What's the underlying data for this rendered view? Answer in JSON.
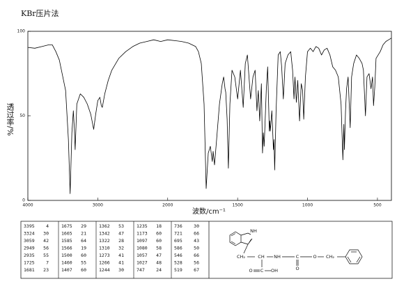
{
  "chart_data": {
    "type": "line",
    "title": "KBr压片法",
    "xlabel": "波数/cm⁻¹",
    "ylabel": "透过率/%",
    "x_scale_break": 2000,
    "x_scale_ratio": 2,
    "color": "#000000",
    "xlim": [
      4000,
      400
    ],
    "xticks": [
      4000,
      3000,
      2000,
      1500,
      1000,
      500
    ],
    "ylim": [
      0,
      100
    ],
    "yticks": [
      0,
      50,
      100
    ],
    "x": [
      4000,
      3900,
      3800,
      3700,
      3650,
      3600,
      3550,
      3500,
      3460,
      3420,
      3395,
      3370,
      3350,
      3335,
      3324,
      3300,
      3250,
      3200,
      3150,
      3100,
      3059,
      3030,
      3000,
      2970,
      2949,
      2935,
      2900,
      2850,
      2800,
      2700,
      2600,
      2500,
      2400,
      2300,
      2200,
      2100,
      2000,
      1900,
      1850,
      1800,
      1780,
      1760,
      1740,
      1725,
      1710,
      1695,
      1681,
      1675,
      1665,
      1650,
      1630,
      1610,
      1600,
      1590,
      1585,
      1575,
      1566,
      1555,
      1540,
      1520,
      1500,
      1480,
      1460,
      1445,
      1430,
      1407,
      1390,
      1375,
      1362,
      1352,
      1342,
      1330,
      1322,
      1316,
      1310,
      1295,
      1285,
      1273,
      1270,
      1266,
      1255,
      1244,
      1240,
      1235,
      1225,
      1210,
      1195,
      1185,
      1173,
      1160,
      1140,
      1120,
      1107,
      1097,
      1090,
      1080,
      1070,
      1057,
      1045,
      1035,
      1027,
      1015,
      1000,
      980,
      960,
      940,
      920,
      900,
      880,
      860,
      840,
      820,
      800,
      780,
      760,
      747,
      740,
      736,
      728,
      721,
      710,
      695,
      685,
      670,
      650,
      630,
      610,
      600,
      586,
      575,
      560,
      546,
      535,
      528,
      519,
      510,
      480,
      460,
      440,
      420,
      400
    ],
    "values": [
      90.5,
      90,
      91,
      92,
      92,
      88,
      83,
      73,
      65,
      36,
      4,
      40,
      53,
      42,
      30,
      57,
      63,
      61,
      57,
      51,
      42,
      51,
      59,
      61,
      56,
      55,
      63,
      71,
      77,
      84,
      88,
      91,
      93,
      94,
      95,
      94,
      95,
      94,
      93,
      91,
      88,
      81,
      57,
      7,
      28,
      32,
      23,
      29,
      21,
      36,
      57,
      69,
      73,
      66,
      64,
      48,
      19,
      57,
      77,
      73,
      60,
      77,
      55,
      81,
      86,
      60,
      73,
      77,
      53,
      65,
      47,
      69,
      28,
      40,
      32,
      65,
      79,
      41,
      47,
      41,
      53,
      30,
      36,
      18,
      53,
      86,
      88,
      79,
      60,
      81,
      86,
      88,
      77,
      60,
      73,
      58,
      71,
      47,
      69,
      65,
      48,
      73,
      88,
      90,
      88,
      91,
      90,
      86,
      89,
      90,
      86,
      79,
      77,
      73,
      57,
      24,
      45,
      30,
      53,
      66,
      73,
      43,
      73,
      81,
      86,
      84,
      81,
      77,
      50,
      73,
      75,
      66,
      73,
      56,
      67,
      84,
      88,
      92,
      94,
      95,
      96
    ]
  },
  "peak_table": {
    "rows": [
      [
        3395,
        4,
        1675,
        29,
        1362,
        53,
        1235,
        18,
        736,
        30
      ],
      [
        3324,
        30,
        1665,
        21,
        1342,
        47,
        1173,
        60,
        721,
        66
      ],
      [
        3059,
        42,
        1585,
        64,
        1322,
        28,
        1097,
        60,
        695,
        43
      ],
      [
        2949,
        56,
        1566,
        19,
        1310,
        32,
        1080,
        58,
        586,
        50
      ],
      [
        2935,
        55,
        1500,
        60,
        1273,
        41,
        1057,
        47,
        546,
        66
      ],
      [
        1725,
        7,
        1460,
        55,
        1266,
        41,
        1027,
        48,
        528,
        56
      ],
      [
        1681,
        23,
        1407,
        60,
        1244,
        30,
        747,
        24,
        519,
        67
      ]
    ]
  },
  "structure": {
    "labels": [
      "NH",
      "CH₂",
      "CH",
      "NH",
      "C",
      "O",
      "O",
      "CH₂",
      "O",
      "C",
      "OH"
    ]
  }
}
